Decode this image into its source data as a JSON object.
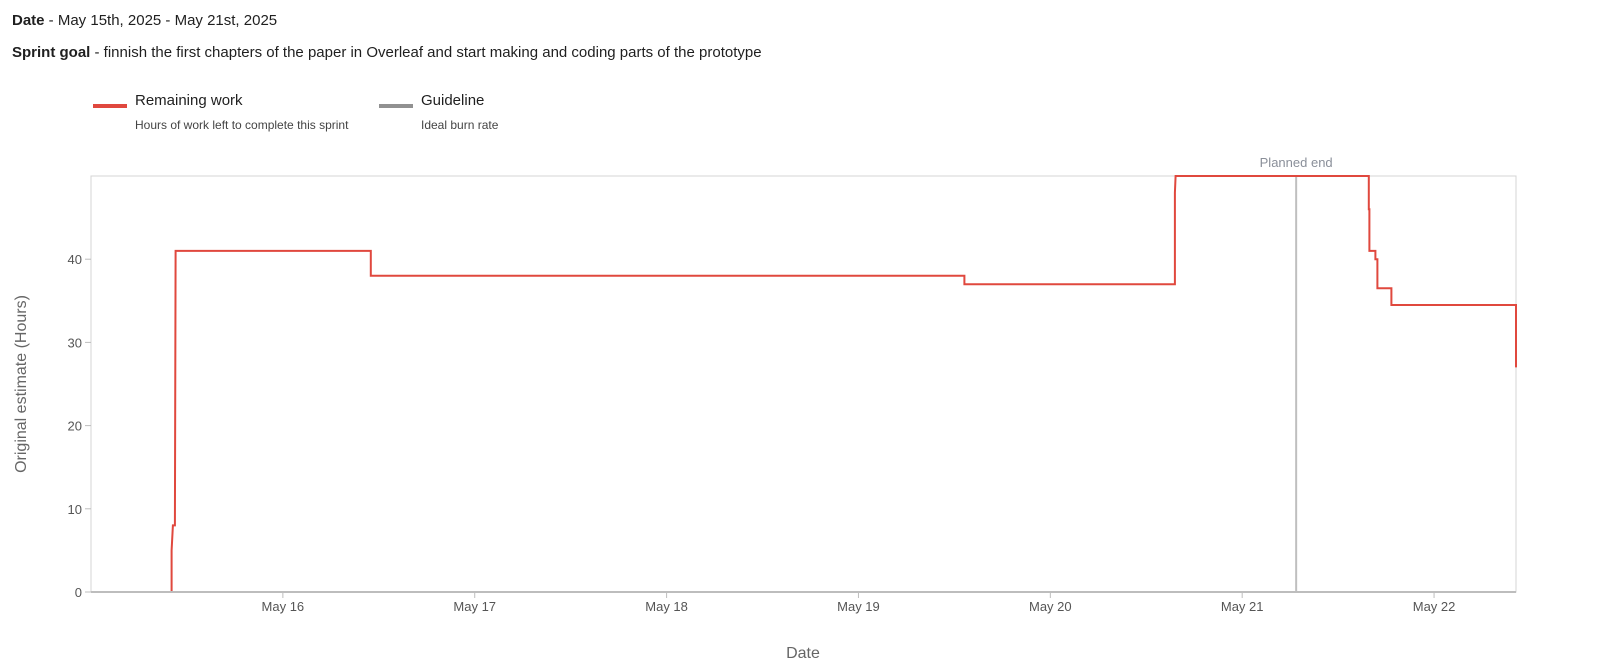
{
  "header": {
    "date_label": "Date",
    "date_value": " - May 15th, 2025 - May 21st, 2025",
    "goal_label": "Sprint goal",
    "goal_value": " - finnish the first chapters of the paper in Overleaf and start making and coding parts of the prototype"
  },
  "legend": [
    {
      "title": "Remaining work",
      "subtitle": "Hours of work left to complete this sprint",
      "color": "#e0483e"
    },
    {
      "title": "Guideline",
      "subtitle": "Ideal burn rate",
      "color": "#919191"
    }
  ],
  "chart_data": {
    "type": "line",
    "title": "",
    "xlabel": "Date",
    "ylabel": "Original estimate (Hours)",
    "xlim": [
      "2025-05-15 00:00",
      "2025-05-22 10:15"
    ],
    "ylim": [
      0,
      50
    ],
    "yticks": [
      0,
      10,
      20,
      30,
      40
    ],
    "xticks": [
      "May 16",
      "May 17",
      "May 18",
      "May 19",
      "May 20",
      "May 21",
      "May 22"
    ],
    "grid": false,
    "legend_position": "top-left",
    "markers": [
      {
        "label": "Planned end",
        "x": "2025-05-21 06:45"
      }
    ],
    "series": [
      {
        "name": "Remaining work",
        "color": "#e0483e",
        "step": true,
        "points": [
          {
            "x": "2025-05-15 00:00",
            "y": 0
          },
          {
            "x": "2025-05-15 10:05",
            "y": 0
          },
          {
            "x": "2025-05-15 10:05",
            "y": 5
          },
          {
            "x": "2025-05-15 10:15",
            "y": 8
          },
          {
            "x": "2025-05-15 10:30",
            "y": 8
          },
          {
            "x": "2025-05-15 10:35",
            "y": 41
          },
          {
            "x": "2025-05-16 11:00",
            "y": 41
          },
          {
            "x": "2025-05-16 11:00",
            "y": 38
          },
          {
            "x": "2025-05-19 13:15",
            "y": 38
          },
          {
            "x": "2025-05-19 13:15",
            "y": 37
          },
          {
            "x": "2025-05-20 15:35",
            "y": 37
          },
          {
            "x": "2025-05-20 15:35",
            "y": 48
          },
          {
            "x": "2025-05-20 15:40",
            "y": 50
          },
          {
            "x": "2025-05-21 15:50",
            "y": 50
          },
          {
            "x": "2025-05-21 15:50",
            "y": 46
          },
          {
            "x": "2025-05-21 15:55",
            "y": 46
          },
          {
            "x": "2025-05-21 15:55",
            "y": 41
          },
          {
            "x": "2025-05-21 16:40",
            "y": 41
          },
          {
            "x": "2025-05-21 16:40",
            "y": 40
          },
          {
            "x": "2025-05-21 16:55",
            "y": 40
          },
          {
            "x": "2025-05-21 16:55",
            "y": 36.5
          },
          {
            "x": "2025-05-21 18:40",
            "y": 36.5
          },
          {
            "x": "2025-05-21 18:40",
            "y": 34.5
          },
          {
            "x": "2025-05-22 10:15",
            "y": 34.5
          },
          {
            "x": "2025-05-22 10:15",
            "y": 27
          }
        ]
      }
    ]
  }
}
